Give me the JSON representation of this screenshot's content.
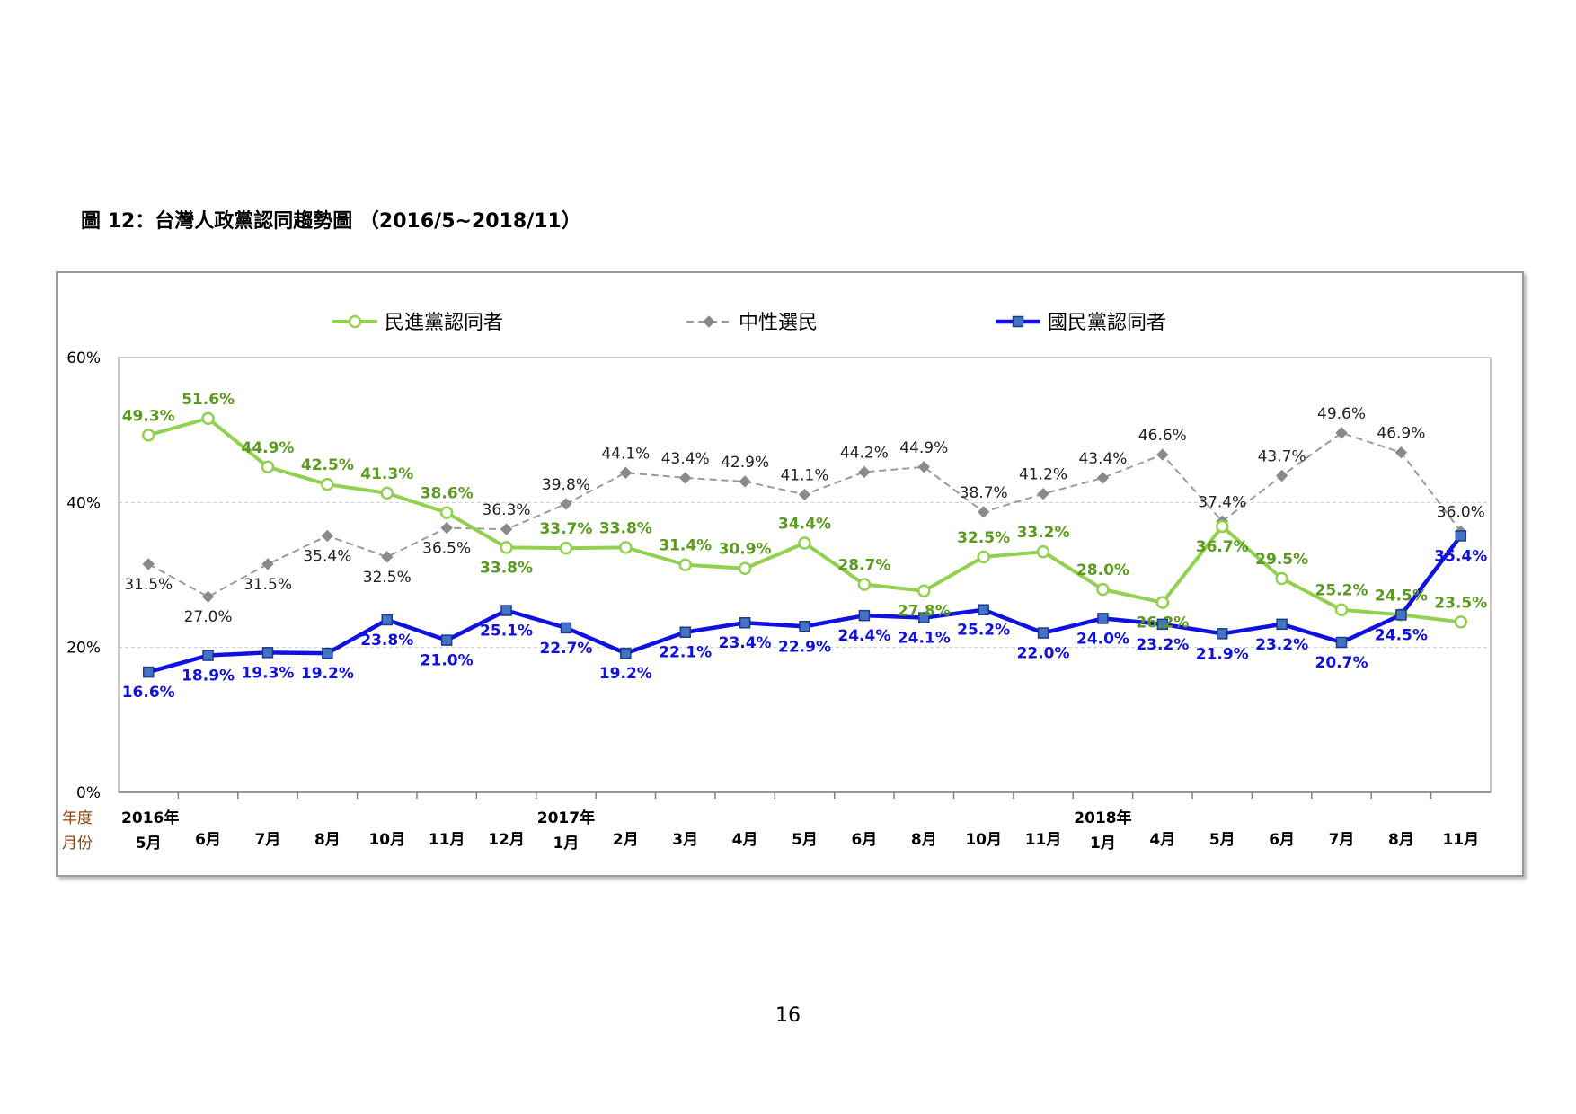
{
  "figure_title": "圖 12：台灣人政黨認同趨勢圖 （2016/5~2018/11）",
  "page_number": "16",
  "colors": {
    "dpp": "#92d050",
    "dpp_label": "#5a9a1e",
    "neutral": "#9a9a9a",
    "neutral_label": "#222222",
    "kmt": "#1010e0",
    "kmt_marker": "#4472c4",
    "axis_label_brown": "#8b4513"
  },
  "chart_data": {
    "type": "line",
    "ylim": [
      0,
      60
    ],
    "y_ticks": [
      "0%",
      "20%",
      "40%",
      "60%"
    ],
    "y_tick_values": [
      0,
      20,
      40,
      60
    ],
    "row_labels": {
      "year": "年度",
      "month": "月份"
    },
    "years": [
      {
        "label": "2016年",
        "index": 0
      },
      {
        "label": "2017年",
        "index": 7
      },
      {
        "label": "2018年",
        "index": 16
      }
    ],
    "categories": [
      "5月",
      "6月",
      "7月",
      "8月",
      "10月",
      "11月",
      "12月",
      "1月",
      "2月",
      "3月",
      "4月",
      "5月",
      "6月",
      "8月",
      "10月",
      "11月",
      "1月",
      "4月",
      "5月",
      "6月",
      "7月",
      "8月",
      "11月"
    ],
    "series": [
      {
        "name": "民進黨認同者",
        "style": "solid-circle",
        "values": [
          49.3,
          51.6,
          44.9,
          42.5,
          41.3,
          38.6,
          33.8,
          33.7,
          33.8,
          31.4,
          30.9,
          34.4,
          28.7,
          27.8,
          32.5,
          33.2,
          28.0,
          26.2,
          36.7,
          29.5,
          25.2,
          24.5,
          23.5
        ],
        "labels": [
          "49.3%",
          "51.6%",
          "44.9%",
          "42.5%",
          "41.3%",
          "38.6%",
          "33.8%",
          "33.7%",
          "33.8%",
          "31.4%",
          "30.9%",
          "34.4%",
          "28.7%",
          "27.8%",
          "32.5%",
          "33.2%",
          "28.0%",
          "26.2%",
          "36.7%",
          "29.5%",
          "25.2%",
          "24.5%",
          "23.5%"
        ]
      },
      {
        "name": "中性選民",
        "style": "dashed-diamond",
        "values": [
          31.5,
          27.0,
          31.5,
          35.4,
          32.5,
          36.5,
          36.3,
          39.8,
          44.1,
          43.4,
          42.9,
          41.1,
          44.2,
          44.9,
          38.7,
          41.2,
          43.4,
          46.6,
          37.4,
          43.7,
          49.6,
          46.9,
          36.0
        ],
        "labels": [
          "31.5%",
          "27.0%",
          "31.5%",
          "35.4%",
          "32.5%",
          "36.5%",
          "36.3%",
          "39.8%",
          "44.1%",
          "43.4%",
          "42.9%",
          "41.1%",
          "44.2%",
          "44.9%",
          "38.7%",
          "41.2%",
          "43.4%",
          "46.6%",
          "37.4%",
          "43.7%",
          "49.6%",
          "46.9%",
          "36.0%"
        ]
      },
      {
        "name": "國民黨認同者",
        "style": "solid-square",
        "values": [
          16.6,
          18.9,
          19.3,
          19.2,
          23.8,
          21.0,
          25.1,
          22.7,
          19.2,
          22.1,
          23.4,
          22.9,
          24.4,
          24.1,
          25.2,
          22.0,
          24.0,
          23.2,
          21.9,
          23.2,
          20.7,
          24.5,
          35.4
        ],
        "labels": [
          "16.6%",
          "18.9%",
          "19.3%",
          "19.2%",
          "23.8%",
          "21.0%",
          "25.1%",
          "22.7%",
          "19.2%",
          "22.1%",
          "23.4%",
          "22.9%",
          "24.4%",
          "24.1%",
          "25.2%",
          "22.0%",
          "24.0%",
          "23.2%",
          "21.9%",
          "23.2%",
          "20.7%",
          "24.5%",
          "35.4%"
        ]
      }
    ],
    "legend": "top",
    "grid": true
  }
}
